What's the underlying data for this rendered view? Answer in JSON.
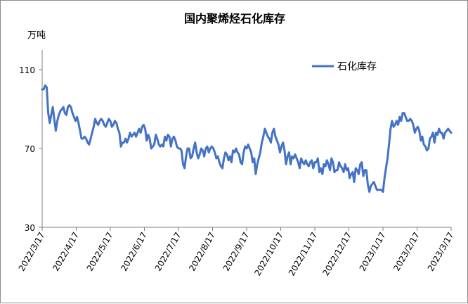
{
  "chart_data": {
    "type": "line",
    "title": "国内聚烯烃石化库存",
    "ylabel": "万吨",
    "xlabel": "",
    "ylim": [
      30,
      120
    ],
    "yticks": [
      30,
      70,
      110
    ],
    "xtick_labels": [
      "2022/3/17",
      "2022/4/17",
      "2022/5/17",
      "2022/6/17",
      "2022/7/17",
      "2022/8/17",
      "2022/9/17",
      "2022/10/17",
      "2022/11/17",
      "2022/12/17",
      "2023/1/17",
      "2023/2/17",
      "2023/3/17"
    ],
    "legend_position": "top-right",
    "grid": false,
    "color": "#4472c4",
    "series": [
      {
        "name": "石化库存",
        "values": [
          100,
          100,
          102,
          101,
          88,
          83,
          87,
          91,
          85,
          79,
          84,
          87,
          89,
          90,
          91,
          88,
          87,
          91,
          92,
          91,
          88,
          86,
          84,
          86,
          83,
          79,
          75,
          75,
          76,
          75,
          73,
          72,
          75,
          78,
          81,
          85,
          83,
          82,
          84,
          85,
          84,
          82,
          81,
          83,
          85,
          84,
          81,
          82,
          84,
          83,
          80,
          78,
          71,
          73,
          73,
          75,
          73,
          75,
          78,
          76,
          77,
          78,
          76,
          78,
          80,
          78,
          81,
          82,
          80,
          74,
          77,
          75,
          70,
          71,
          72,
          77,
          75,
          72,
          71,
          72,
          71,
          76,
          74,
          77,
          76,
          71,
          75,
          76,
          74,
          71,
          70,
          70,
          69,
          62,
          60,
          66,
          70,
          70,
          65,
          66,
          70,
          73,
          68,
          65,
          67,
          70,
          69,
          66,
          70,
          71,
          68,
          70,
          71,
          70,
          68,
          65,
          66,
          63,
          61,
          60,
          65,
          68,
          67,
          64,
          66,
          63,
          69,
          68,
          70,
          68,
          67,
          63,
          62,
          68,
          71,
          70,
          72,
          70,
          68,
          63,
          65,
          57,
          62,
          65,
          68,
          73,
          76,
          80,
          78,
          76,
          75,
          73,
          78,
          80,
          76,
          74,
          72,
          68,
          71,
          73,
          69,
          62,
          66,
          68,
          62,
          66,
          65,
          67,
          65,
          63,
          60,
          65,
          63,
          62,
          64,
          62,
          61,
          63,
          64,
          60,
          63,
          63,
          65,
          58,
          60,
          57,
          62,
          61,
          64,
          62,
          59,
          65,
          63,
          58,
          59,
          59,
          63,
          61,
          60,
          58,
          62,
          59,
          60,
          55,
          57,
          58,
          53,
          60,
          59,
          57,
          62,
          63,
          56,
          59,
          59,
          52,
          48,
          51,
          52,
          53,
          51,
          49,
          49,
          49,
          49,
          48,
          55,
          60,
          65,
          72,
          80,
          84,
          81,
          82,
          84,
          82,
          86,
          84,
          88,
          88,
          86,
          84,
          84,
          85,
          84,
          82,
          78,
          80,
          81,
          79,
          74,
          76,
          72,
          71,
          69,
          70,
          75,
          76,
          78,
          73,
          78,
          77,
          80,
          78,
          78,
          75,
          78,
          79,
          80,
          79,
          78
        ],
        "legend": "石化库存"
      }
    ]
  }
}
